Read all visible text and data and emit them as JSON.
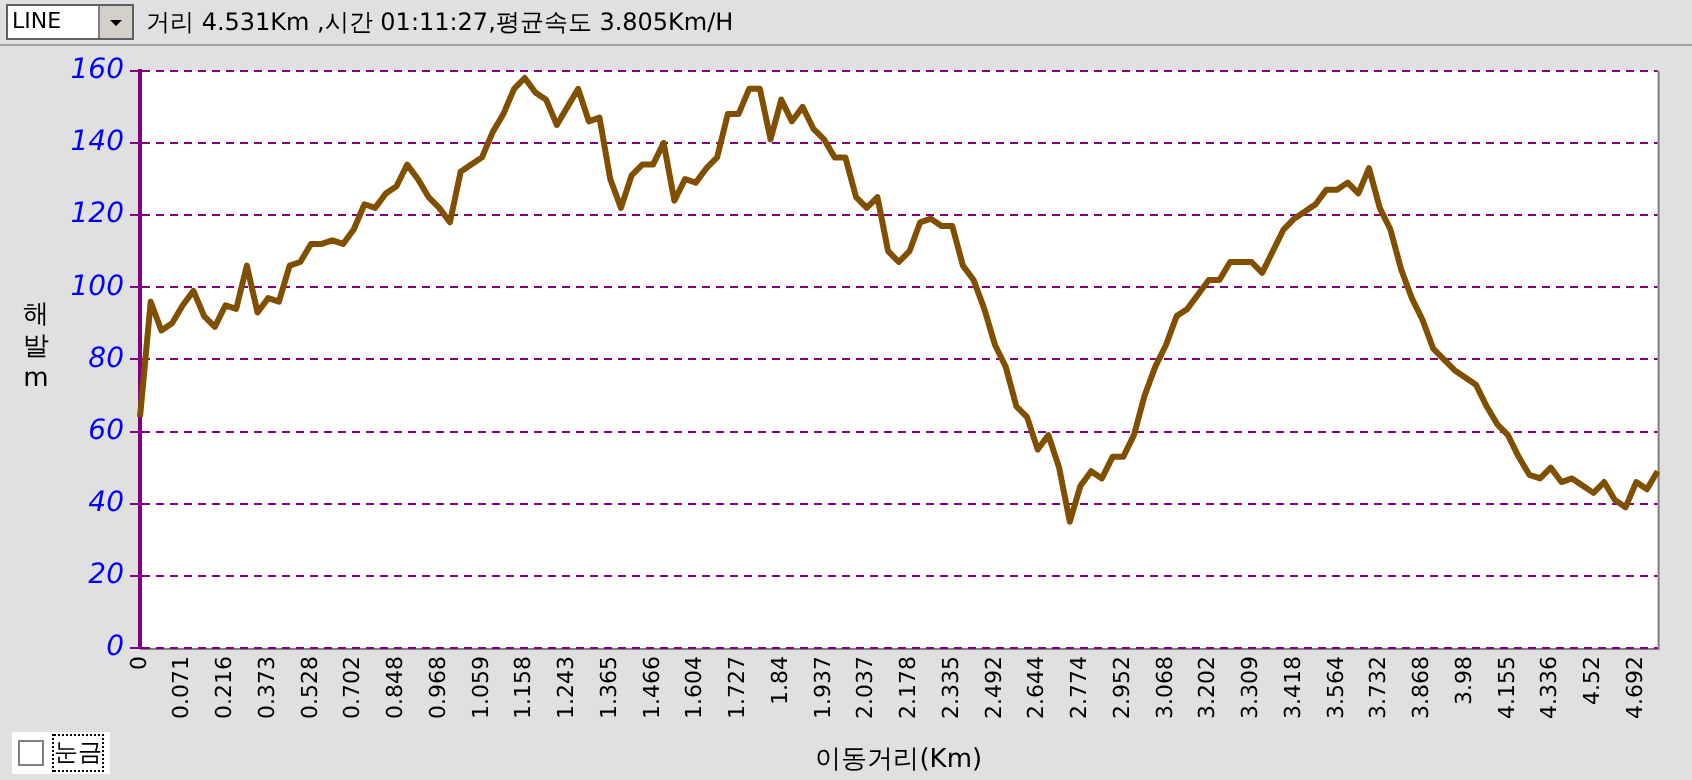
{
  "chart_data": {
    "type": "line",
    "title": "거리 4.531Km ,시간 01:11:27,평균속도 3.805Km/H",
    "xlabel": "이동거리(Km)",
    "ylabel": "해발 m",
    "annotations": [
      "LINE",
      "눈금"
    ],
    "categories": [
      "0",
      null,
      null,
      null,
      "0.071",
      null,
      null,
      null,
      "0.216",
      null,
      null,
      null,
      "0.373",
      null,
      null,
      null,
      "0.528",
      null,
      null,
      null,
      "0.702",
      null,
      null,
      null,
      "0.848",
      null,
      null,
      null,
      "0.968",
      null,
      null,
      null,
      "1.059",
      null,
      null,
      null,
      "1.158",
      null,
      null,
      null,
      "1.243",
      null,
      null,
      null,
      "1.365",
      null,
      null,
      null,
      "1.466",
      null,
      null,
      null,
      "1.604",
      null,
      null,
      null,
      "1.727",
      null,
      null,
      null,
      "1.84",
      null,
      null,
      null,
      "1.937",
      null,
      null,
      null,
      "2.037",
      null,
      null,
      null,
      "2.178",
      null,
      null,
      null,
      "2.335",
      null,
      null,
      null,
      "2.492",
      null,
      null,
      null,
      "2.644",
      null,
      null,
      null,
      "2.774",
      null,
      null,
      null,
      "2.952",
      null,
      null,
      null,
      "3.068",
      null,
      null,
      null,
      "3.202",
      null,
      null,
      null,
      "3.309",
      null,
      null,
      null,
      "3.418",
      null,
      null,
      null,
      "3.564",
      null,
      null,
      null,
      "3.732",
      null,
      null,
      null,
      "3.868",
      null,
      null,
      null,
      "3.98",
      null,
      null,
      null,
      "4.155",
      null,
      null,
      null,
      "4.336",
      null,
      null,
      null,
      "4.52",
      null,
      null,
      null,
      "4.692",
      null,
      null
    ],
    "series": [
      {
        "color": "#805000",
        "values": [
          64,
          96,
          88,
          90,
          95,
          99,
          92,
          89,
          95,
          94,
          106,
          93,
          97,
          96,
          106,
          107,
          112,
          112,
          113,
          112,
          116,
          123,
          122,
          126,
          128,
          134,
          130,
          125,
          122,
          118,
          132,
          134,
          136,
          143,
          148,
          155,
          158,
          154,
          152,
          145,
          150,
          155,
          146,
          147,
          130,
          122,
          131,
          134,
          134,
          140,
          124,
          130,
          129,
          133,
          136,
          148,
          148,
          155,
          155,
          141,
          152,
          146,
          150,
          144,
          141,
          136,
          136,
          125,
          122,
          125,
          110,
          107,
          110,
          118,
          119,
          117,
          117,
          106,
          102,
          94,
          84,
          78,
          67,
          64,
          55,
          59,
          50,
          35,
          45,
          49,
          47,
          53,
          53,
          59,
          70,
          78,
          84,
          92,
          94,
          98,
          102,
          102,
          107,
          107,
          107,
          104,
          110,
          116,
          119,
          121,
          123,
          127,
          127,
          129,
          126,
          133,
          122,
          116,
          105,
          97,
          91,
          83,
          80,
          77,
          75,
          73,
          67,
          62,
          59,
          53,
          48,
          47,
          50,
          46,
          47,
          45,
          43,
          46,
          41,
          39,
          46,
          44,
          49
        ]
      }
    ],
    "ylim": [
      0,
      160
    ],
    "yticks": [
      0,
      20,
      40,
      60,
      80,
      100,
      120,
      140,
      160
    ],
    "grid": "y",
    "line_style": "solid",
    "marker": "none"
  }
}
